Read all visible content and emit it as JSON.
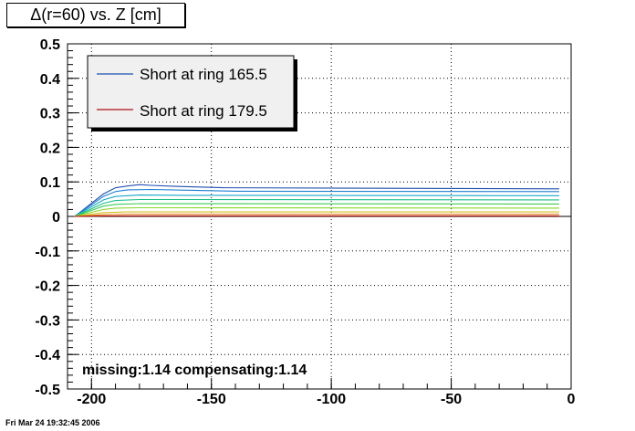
{
  "title": "Δ(r=60) vs. Z [cm]",
  "footer": "Fri Mar 24 19:32:45 2006",
  "annotation": "missing:1.14 compensating:1.14",
  "chart_data": {
    "type": "line",
    "xlim": [
      -210,
      0
    ],
    "ylim": [
      -0.5,
      0.5
    ],
    "x_ticks": [
      -200,
      -150,
      -100,
      -50,
      0
    ],
    "y_ticks": [
      0.5,
      0.4,
      0.3,
      0.2,
      0.1,
      0,
      -0.1,
      -0.2,
      -0.3,
      -0.4,
      -0.5
    ],
    "grid": true,
    "legend_position": "top-left",
    "legend": [
      {
        "name": "Short at ring 165.5",
        "color": "#1f4fb0"
      },
      {
        "name": "Short at ring 179.5",
        "color": "#b01010"
      }
    ],
    "series": [
      {
        "name": "Short at ring 165.5",
        "color": "#1f4fb0",
        "x": [
          -207,
          -195,
          -190,
          -185,
          -180,
          -175,
          -165,
          -145,
          -5
        ],
        "y": [
          0.0,
          0.065,
          0.083,
          0.088,
          0.092,
          0.09,
          0.087,
          0.083,
          0.08
        ]
      },
      {
        "color": "#1e7fd0",
        "x": [
          -207,
          -195,
          -190,
          -185,
          -175,
          -160,
          -140,
          -5
        ],
        "y": [
          0.0,
          0.058,
          0.072,
          0.077,
          0.078,
          0.076,
          0.073,
          0.072
        ]
      },
      {
        "color": "#18a8c8",
        "x": [
          -207,
          -195,
          -190,
          -180,
          -160,
          -5
        ],
        "y": [
          0.0,
          0.048,
          0.058,
          0.062,
          0.061,
          0.06
        ]
      },
      {
        "color": "#1dbf8a",
        "x": [
          -207,
          -195,
          -190,
          -180,
          -160,
          -5
        ],
        "y": [
          0.0,
          0.038,
          0.046,
          0.049,
          0.049,
          0.048
        ]
      },
      {
        "color": "#3dcc55",
        "x": [
          -207,
          -195,
          -190,
          -180,
          -5
        ],
        "y": [
          0.0,
          0.03,
          0.035,
          0.037,
          0.036
        ]
      },
      {
        "color": "#8ad82a",
        "x": [
          -207,
          -195,
          -190,
          -180,
          -5
        ],
        "y": [
          0.0,
          0.02,
          0.024,
          0.025,
          0.024
        ]
      },
      {
        "color": "#d8c020",
        "x": [
          -207,
          -195,
          -185,
          -5
        ],
        "y": [
          0.0,
          0.011,
          0.013,
          0.013
        ]
      },
      {
        "color": "#e07818",
        "x": [
          -207,
          -195,
          -185,
          -5
        ],
        "y": [
          0.0,
          0.005,
          0.006,
          0.006
        ]
      },
      {
        "name": "Short at ring 179.5",
        "color": "#b01010",
        "x": [
          -207,
          -195,
          -185,
          -5
        ],
        "y": [
          0.0,
          0.001,
          0.001,
          0.001
        ]
      }
    ]
  }
}
